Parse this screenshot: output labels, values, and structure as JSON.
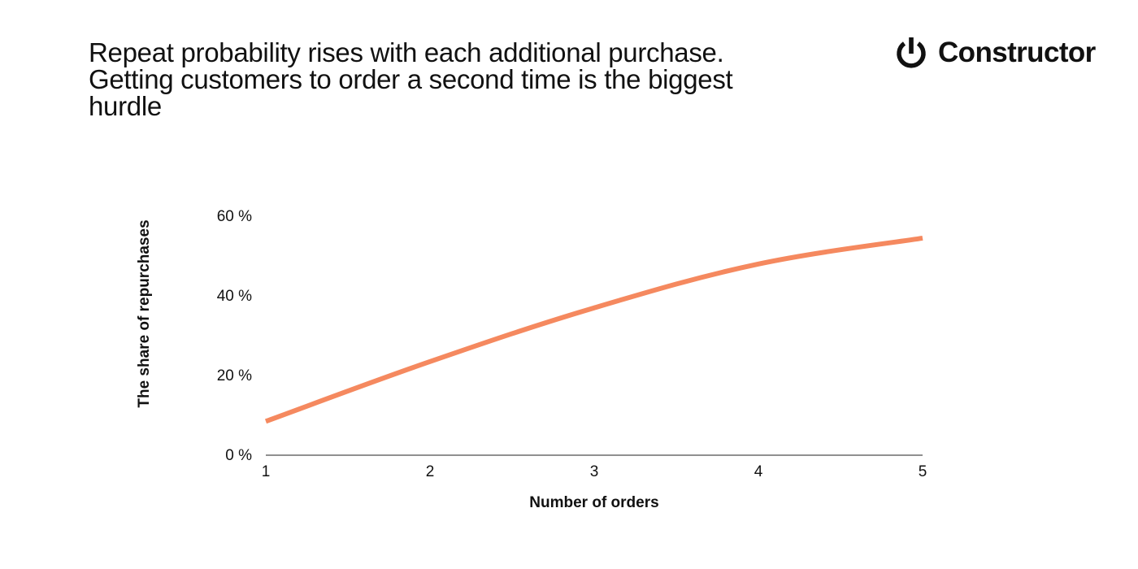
{
  "header": {
    "title_lines": [
      "Repeat probability rises with each additional purchase.",
      "Getting customers to order a second time is the biggest",
      "hurdle"
    ]
  },
  "logo": {
    "text": "Constructor",
    "icon": "power-icon"
  },
  "colors": {
    "line": "#F5895F",
    "axis": "#222222",
    "text": "#111111"
  },
  "chart_data": {
    "type": "line",
    "x": [
      1,
      2,
      3,
      4,
      5
    ],
    "series": [
      {
        "values": [
          8.5,
          23.5,
          37,
          48,
          54.5
        ]
      }
    ],
    "xlabel": "Number of orders",
    "ylabel": "The share of repurchases",
    "xlim": [
      1,
      5
    ],
    "ylim": [
      0,
      60
    ],
    "xticks": [
      "1",
      "2",
      "3",
      "4",
      "5"
    ],
    "yticks": [
      {
        "value": 0,
        "label": "0 %"
      },
      {
        "value": 20,
        "label": "20 %"
      },
      {
        "value": 40,
        "label": "40 %"
      },
      {
        "value": 60,
        "label": "60 %"
      }
    ],
    "grid": false,
    "legend": "none"
  }
}
